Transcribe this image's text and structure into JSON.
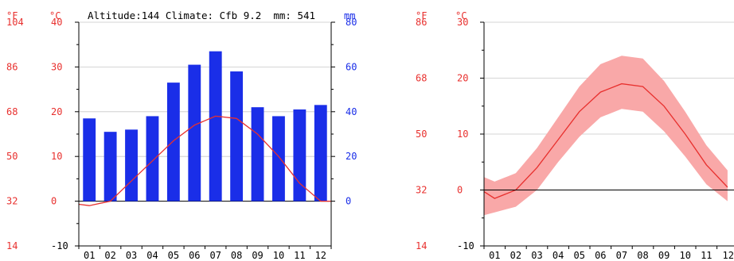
{
  "chart_data": [
    {
      "type": "bar",
      "header": {
        "altitude_label": "Altitude:",
        "altitude_value": "144",
        "climate_label": "Climate:",
        "climate_value": "Cfb",
        "temp_value": "9.2",
        "precip_label": "mm:",
        "precip_value": "541"
      },
      "axis_unit_f": "°F",
      "axis_unit_c": "°C",
      "axis_unit_mm": "mm",
      "categories": [
        "01",
        "02",
        "03",
        "04",
        "05",
        "06",
        "07",
        "08",
        "09",
        "10",
        "11",
        "12"
      ],
      "series": [
        {
          "values": [
            37,
            31,
            32,
            38,
            53,
            61,
            67,
            58,
            42,
            38,
            41,
            43
          ]
        },
        {
          "values": [
            -1,
            0,
            4.5,
            9,
            13.5,
            17,
            19,
            18.5,
            15,
            10,
            4,
            0
          ]
        }
      ],
      "y_left_c": {
        "ticks": [
          "-10",
          "0",
          "10",
          "20",
          "30",
          "40"
        ],
        "ylim": [
          -10,
          40
        ]
      },
      "y_left_f": {
        "ticks": [
          "14",
          "32",
          "50",
          "68",
          "86",
          "104"
        ]
      },
      "y_right_mm": {
        "ticks": [
          "0",
          "20",
          "40",
          "60",
          "80"
        ],
        "ylim": [
          -20,
          80
        ]
      },
      "colors": {
        "temp": "#e8302e",
        "precip": "#1a2ee8",
        "band": "#f9a8a8"
      }
    },
    {
      "type": "area",
      "axis_unit_f": "°F",
      "axis_unit_c": "°C",
      "categories": [
        "01",
        "02",
        "03",
        "04",
        "05",
        "06",
        "07",
        "08",
        "09",
        "10",
        "11",
        "12"
      ],
      "series": [
        {
          "values": [
            -1.5,
            0,
            4,
            9,
            14,
            17.5,
            19,
            18.5,
            15,
            10,
            4.5,
            0.5
          ]
        },
        {
          "values": [
            1.5,
            3,
            7.5,
            13,
            18.5,
            22.5,
            24,
            23.5,
            19.5,
            14,
            8,
            3.5
          ]
        },
        {
          "values": [
            -4,
            -3,
            0,
            5,
            9.5,
            13,
            14.5,
            14,
            10.5,
            6,
            1,
            -2
          ]
        }
      ],
      "y_left_c": {
        "ticks": [
          "-10",
          "0",
          "10",
          "20",
          "30"
        ],
        "ylim": [
          -10,
          30
        ]
      },
      "y_left_f": {
        "ticks": [
          "14",
          "32",
          "50",
          "68",
          "86"
        ]
      },
      "colors": {
        "temp": "#e8302e",
        "band": "#f9a8a8"
      }
    }
  ]
}
